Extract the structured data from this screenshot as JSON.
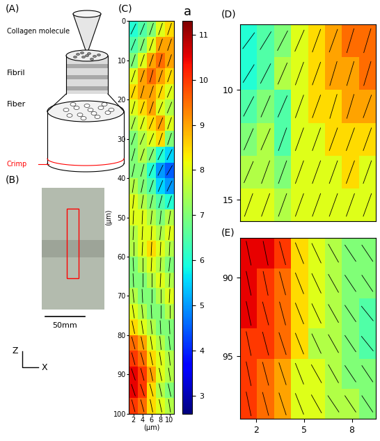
{
  "panel_labels": [
    "(A)",
    "(B)",
    "(C)",
    "(D)",
    "(E)"
  ],
  "schematic": {
    "molecule": "Collagen molecule",
    "fibril": "Fibril",
    "fiber": "Fiber",
    "crimp": "Crimp"
  },
  "photo": {
    "scale_bar": "50mm",
    "axis_vertical": "Z",
    "axis_horizontal": "X"
  },
  "chart_data": [
    {
      "type": "heatmap",
      "xlim": [
        1,
        11
      ],
      "ylim": [
        0,
        100
      ],
      "xticks": [
        2,
        4,
        6,
        8,
        10
      ],
      "yticks": [
        0,
        10,
        20,
        30,
        40,
        50,
        60,
        70,
        80,
        90,
        100
      ],
      "xlabel": "(µm)",
      "ylabel": "(µm)",
      "tick_labels": true,
      "color_label": "a",
      "color_range": [
        2.6,
        11.3
      ],
      "color_ticks": [
        3,
        4,
        5,
        6,
        7,
        8,
        9,
        10,
        11
      ],
      "cells": [
        [
          6,
          6.5,
          7,
          8,
          8.5
        ],
        [
          6.5,
          7,
          8,
          9,
          9
        ],
        [
          7,
          8,
          9,
          9.5,
          9
        ],
        [
          8,
          9,
          9.5,
          9,
          8.5
        ],
        [
          8.5,
          9,
          9,
          8.5,
          8
        ],
        [
          8,
          8.5,
          9,
          8,
          7.5
        ],
        [
          7.5,
          8,
          8.5,
          9,
          8
        ],
        [
          7,
          7.5,
          8,
          8.5,
          7
        ],
        [
          7,
          7.5,
          7,
          6,
          5.5
        ],
        [
          7,
          7,
          6,
          5,
          4.5
        ],
        [
          7.5,
          7,
          6.5,
          5.5,
          5
        ],
        [
          8,
          7.5,
          7,
          6.5,
          6
        ],
        [
          8,
          8,
          7.5,
          7,
          7.5
        ],
        [
          7.5,
          8,
          8,
          7.5,
          8
        ],
        [
          7.5,
          8,
          8.5,
          8,
          7.5
        ],
        [
          7,
          7.5,
          8,
          7.5,
          7
        ],
        [
          7,
          7,
          7.5,
          8,
          7.5
        ],
        [
          7.5,
          7,
          7,
          7.5,
          8
        ],
        [
          8,
          7.5,
          7,
          7,
          7.5
        ],
        [
          8.5,
          8,
          7.5,
          7,
          7
        ],
        [
          9.5,
          9,
          8,
          7.5,
          7
        ],
        [
          10,
          9.5,
          8.5,
          8,
          7.5
        ],
        [
          10.5,
          10,
          9,
          8,
          7.5
        ],
        [
          10.5,
          10,
          8.5,
          7.5,
          7
        ],
        [
          10,
          9.5,
          8.5,
          8,
          7.5
        ]
      ],
      "angles": [
        [
          50,
          55,
          60,
          60,
          60
        ],
        [
          55,
          60,
          60,
          60,
          60
        ],
        [
          60,
          60,
          60,
          65,
          60
        ],
        [
          60,
          60,
          65,
          60,
          60
        ],
        [
          60,
          65,
          60,
          60,
          55
        ],
        [
          65,
          60,
          60,
          55,
          55
        ],
        [
          60,
          60,
          55,
          55,
          60
        ],
        [
          60,
          55,
          55,
          60,
          60
        ],
        [
          65,
          60,
          55,
          50,
          50
        ],
        [
          70,
          65,
          55,
          50,
          45
        ],
        [
          75,
          70,
          60,
          55,
          50
        ],
        [
          80,
          75,
          70,
          65,
          60
        ],
        [
          85,
          85,
          80,
          80,
          75
        ],
        [
          85,
          85,
          85,
          80,
          80
        ],
        [
          90,
          85,
          85,
          85,
          85
        ],
        [
          95,
          90,
          85,
          85,
          80
        ],
        [
          95,
          90,
          90,
          85,
          85
        ],
        [
          100,
          95,
          90,
          90,
          85
        ],
        [
          105,
          100,
          95,
          90,
          90
        ],
        [
          110,
          105,
          100,
          95,
          95
        ],
        [
          115,
          110,
          105,
          100,
          100
        ],
        [
          115,
          115,
          110,
          105,
          100
        ],
        [
          120,
          115,
          110,
          110,
          105
        ],
        [
          120,
          120,
          115,
          110,
          110
        ],
        [
          115,
          115,
          110,
          110,
          105
        ]
      ]
    },
    {
      "type": "heatmap",
      "xlim": [
        0,
        10
      ],
      "ylim": [
        7,
        16
      ],
      "yticks": [
        10,
        15
      ],
      "tick_labels": "y",
      "cells": [
        [
          6,
          6.5,
          7,
          8,
          8.5,
          9,
          9.5,
          9.5
        ],
        [
          6,
          6.5,
          7.5,
          8,
          8.5,
          9,
          9,
          9.5
        ],
        [
          6.5,
          7,
          6.5,
          8,
          8.5,
          8.5,
          9,
          9
        ],
        [
          7,
          7.5,
          6.5,
          8,
          8,
          8.5,
          8.5,
          8.5
        ],
        [
          7.5,
          7.5,
          7,
          8,
          8,
          8,
          8.5,
          8
        ],
        [
          8,
          8,
          7.5,
          8,
          8,
          8,
          8,
          8
        ]
      ],
      "angles": [
        [
          35,
          40,
          45,
          50,
          55,
          55,
          60,
          60
        ],
        [
          40,
          45,
          50,
          55,
          55,
          60,
          60,
          60
        ],
        [
          45,
          50,
          50,
          55,
          55,
          60,
          60,
          55
        ],
        [
          50,
          50,
          55,
          55,
          55,
          55,
          55,
          55
        ],
        [
          50,
          55,
          55,
          55,
          55,
          55,
          55,
          55
        ],
        [
          55,
          55,
          55,
          55,
          55,
          55,
          55,
          55
        ]
      ]
    },
    {
      "type": "heatmap",
      "xlim": [
        1,
        9.5
      ],
      "ylim": [
        87.5,
        99
      ],
      "xticks": [
        2,
        5,
        8
      ],
      "yticks": [
        90,
        95
      ],
      "tick_labels": true,
      "cells": [
        [
          10.5,
          10.5,
          10,
          8.5,
          8,
          7.5,
          7,
          7
        ],
        [
          10.5,
          10,
          9.5,
          8.5,
          8,
          7.5,
          7,
          7
        ],
        [
          10.5,
          10,
          9.5,
          8.5,
          8,
          7.5,
          7,
          6.5
        ],
        [
          10,
          10,
          9.5,
          8.5,
          7.5,
          7.5,
          7,
          6.5
        ],
        [
          10,
          9.5,
          9,
          8,
          8,
          7.5,
          7,
          7
        ],
        [
          10,
          9.5,
          9,
          8,
          8,
          7.5,
          7.5,
          7
        ]
      ],
      "angles": [
        [
          110,
          110,
          115,
          125,
          130,
          135,
          140,
          140
        ],
        [
          110,
          110,
          115,
          125,
          130,
          135,
          140,
          140
        ],
        [
          110,
          115,
          115,
          125,
          130,
          135,
          140,
          145
        ],
        [
          110,
          115,
          120,
          125,
          130,
          135,
          140,
          145
        ],
        [
          110,
          115,
          120,
          125,
          135,
          135,
          140,
          140
        ],
        [
          110,
          115,
          120,
          125,
          135,
          140,
          140,
          140
        ]
      ]
    }
  ]
}
